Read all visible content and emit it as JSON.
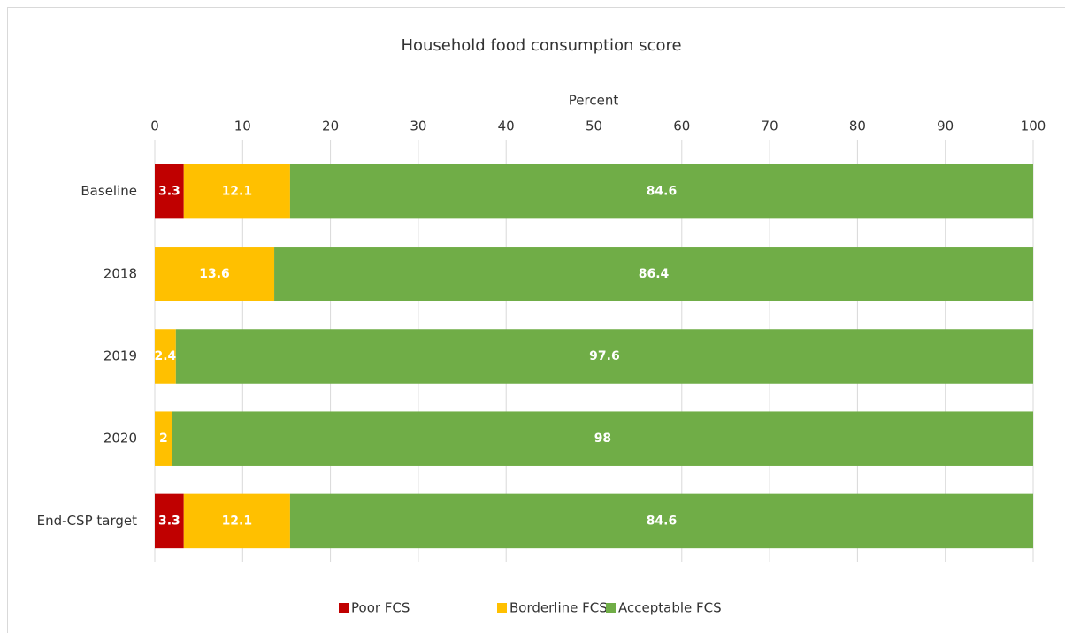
{
  "chart_data": {
    "type": "stacked-bar-horizontal",
    "title": "Household food consumption score",
    "x_label": "Percent",
    "categories": [
      "Baseline",
      "2018",
      "2019",
      "2020",
      "End-CSP target"
    ],
    "series": [
      {
        "name": "Poor FCS",
        "color": "#c00000",
        "values": [
          3.3,
          null,
          null,
          null,
          3.3
        ]
      },
      {
        "name": "Borderline FCS",
        "color": "#ffc000",
        "values": [
          12.1,
          13.6,
          2.4,
          2,
          12.1
        ]
      },
      {
        "name": "Acceptable FCS",
        "color": "#70ad47",
        "values": [
          84.6,
          86.4,
          97.6,
          98,
          84.6
        ]
      }
    ],
    "xlim": [
      0,
      100
    ],
    "xticks": [
      0,
      10,
      20,
      30,
      40,
      50,
      60,
      70,
      80,
      90,
      100
    ],
    "grid": true,
    "legend": "bottom"
  }
}
